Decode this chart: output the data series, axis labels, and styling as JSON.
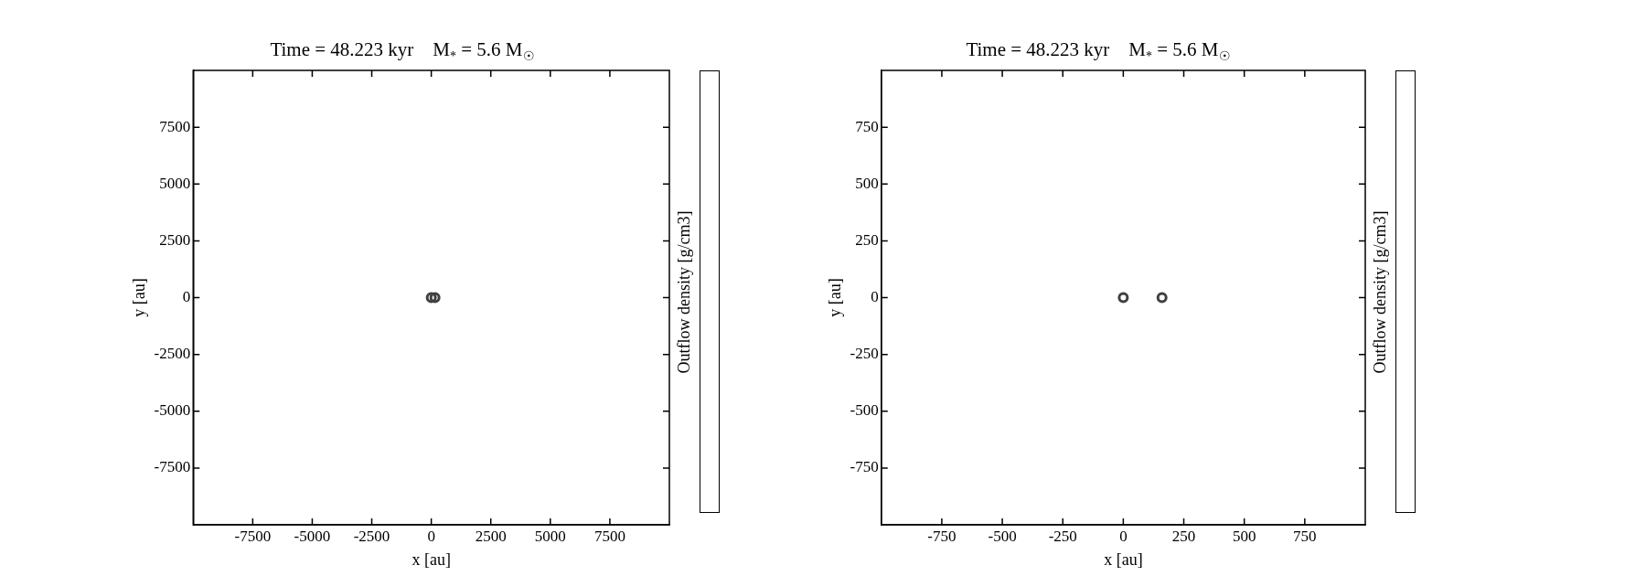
{
  "chart_data": [
    {
      "type": "scatter",
      "title": "Time = 48.223 kyr    M$_{*}$ = 5.6 M$_{☉}$",
      "xlabel": "x [au]",
      "ylabel": "y [au]",
      "clabel": "Outflow density [g/cm3]",
      "marker": "circle",
      "legend": false,
      "grid": false,
      "series": [
        {
          "color": "#404040",
          "x": [
            0,
            155
          ],
          "values": [
            0,
            0
          ]
        }
      ],
      "xlim": [
        -10000,
        10000
      ],
      "ylim": [
        -10000,
        10000
      ],
      "xticks": [
        -7500,
        -5000,
        -2500,
        0,
        2500,
        5000,
        7500
      ],
      "yticks": [
        -7500,
        -5000,
        -2500,
        0,
        2500,
        5000,
        7500
      ]
    },
    {
      "type": "scatter",
      "title": "Time = 48.223 kyr    M$_{*}$ = 5.6 M$_{☉}$",
      "xlabel": "x [au]",
      "ylabel": "y [au]",
      "clabel": "Outflow density [g/cm3]",
      "marker": "circle",
      "legend": false,
      "grid": false,
      "series": [
        {
          "color": "#404040",
          "x": [
            0,
            160
          ],
          "values": [
            0,
            0
          ]
        }
      ],
      "xlim": [
        -1000,
        1000
      ],
      "ylim": [
        -1000,
        1000
      ],
      "xticks": [
        -750,
        -500,
        -250,
        0,
        250,
        500,
        750
      ],
      "yticks": [
        -750,
        -500,
        -250,
        0,
        250,
        500,
        750
      ]
    }
  ]
}
